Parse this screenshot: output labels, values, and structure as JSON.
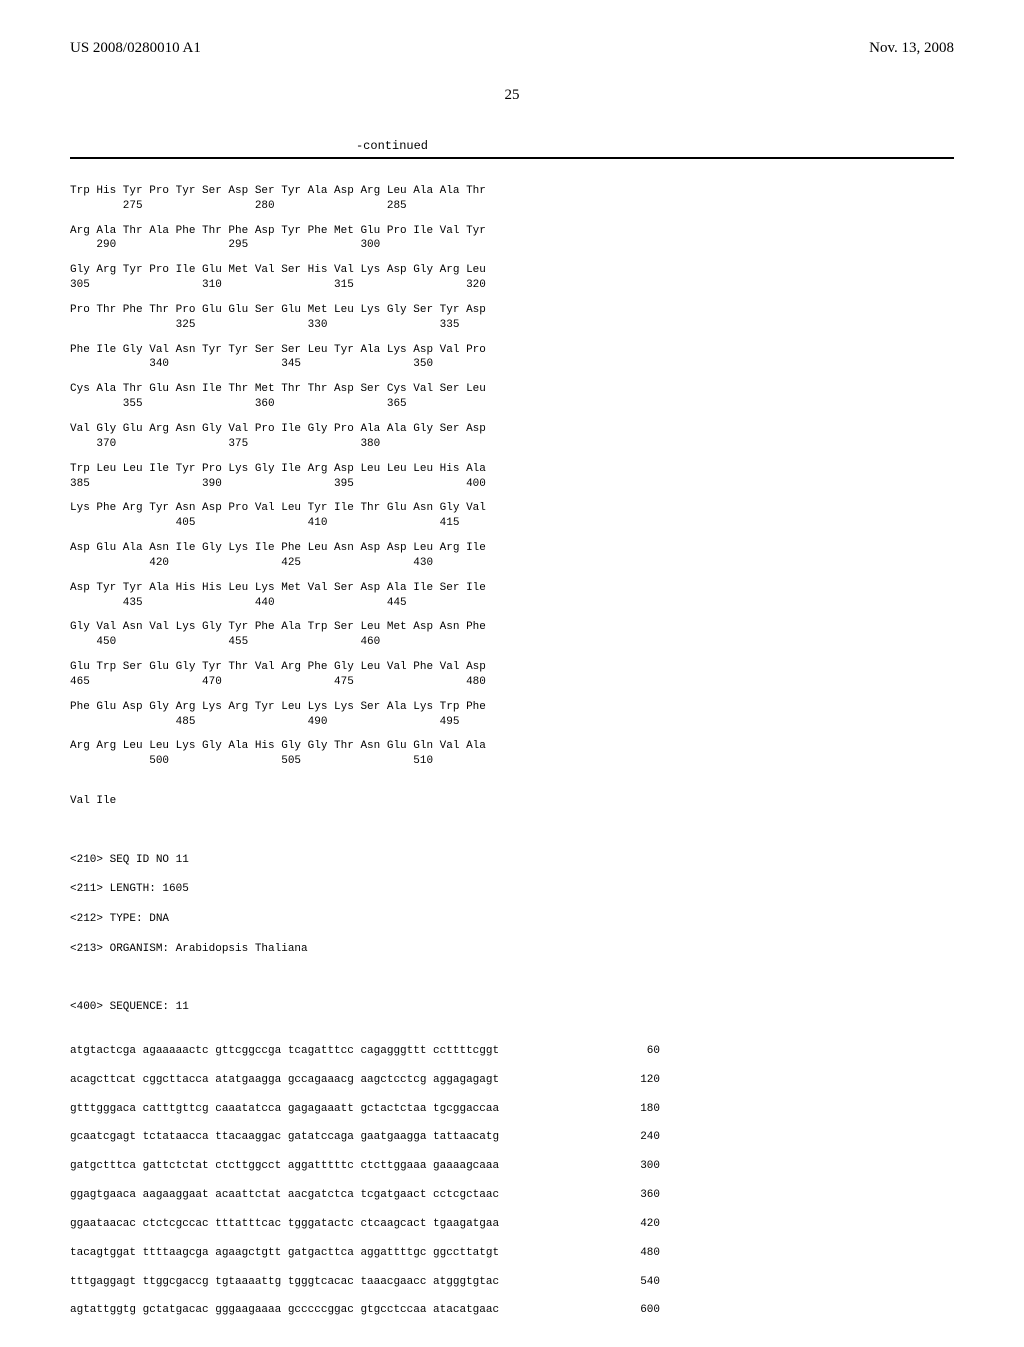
{
  "header": {
    "pub_number": "US 2008/0280010 A1",
    "pub_date": "Nov. 13, 2008",
    "page_number": "25"
  },
  "continued_label": "-continued",
  "protein_rows": [
    {
      "aa": "Trp His Tyr Pro Tyr Ser Asp Ser Tyr Ala Asp Arg Leu Ala Ala Thr",
      "pos": "        275                 280                 285"
    },
    {
      "aa": "Arg Ala Thr Ala Phe Thr Phe Asp Tyr Phe Met Glu Pro Ile Val Tyr",
      "pos": "    290                 295                 300"
    },
    {
      "aa": "Gly Arg Tyr Pro Ile Glu Met Val Ser His Val Lys Asp Gly Arg Leu",
      "pos": "305                 310                 315                 320"
    },
    {
      "aa": "Pro Thr Phe Thr Pro Glu Glu Ser Glu Met Leu Lys Gly Ser Tyr Asp",
      "pos": "                325                 330                 335"
    },
    {
      "aa": "Phe Ile Gly Val Asn Tyr Tyr Ser Ser Leu Tyr Ala Lys Asp Val Pro",
      "pos": "            340                 345                 350"
    },
    {
      "aa": "Cys Ala Thr Glu Asn Ile Thr Met Thr Thr Asp Ser Cys Val Ser Leu",
      "pos": "        355                 360                 365"
    },
    {
      "aa": "Val Gly Glu Arg Asn Gly Val Pro Ile Gly Pro Ala Ala Gly Ser Asp",
      "pos": "    370                 375                 380"
    },
    {
      "aa": "Trp Leu Leu Ile Tyr Pro Lys Gly Ile Arg Asp Leu Leu Leu His Ala",
      "pos": "385                 390                 395                 400"
    },
    {
      "aa": "Lys Phe Arg Tyr Asn Asp Pro Val Leu Tyr Ile Thr Glu Asn Gly Val",
      "pos": "                405                 410                 415"
    },
    {
      "aa": "Asp Glu Ala Asn Ile Gly Lys Ile Phe Leu Asn Asp Asp Leu Arg Ile",
      "pos": "            420                 425                 430"
    },
    {
      "aa": "Asp Tyr Tyr Ala His His Leu Lys Met Val Ser Asp Ala Ile Ser Ile",
      "pos": "        435                 440                 445"
    },
    {
      "aa": "Gly Val Asn Val Lys Gly Tyr Phe Ala Trp Ser Leu Met Asp Asn Phe",
      "pos": "    450                 455                 460"
    },
    {
      "aa": "Glu Trp Ser Glu Gly Tyr Thr Val Arg Phe Gly Leu Val Phe Val Asp",
      "pos": "465                 470                 475                 480"
    },
    {
      "aa": "Phe Glu Asp Gly Arg Lys Arg Tyr Leu Lys Lys Ser Ala Lys Trp Phe",
      "pos": "                485                 490                 495"
    },
    {
      "aa": "Arg Arg Leu Leu Lys Gly Ala His Gly Gly Thr Asn Glu Gln Val Ala",
      "pos": "            500                 505                 510"
    }
  ],
  "val_ile": "Val Ile",
  "meta": {
    "l1": "<210> SEQ ID NO 11",
    "l2": "<211> LENGTH: 1605",
    "l3": "<212> TYPE: DNA",
    "l4": "<213> ORGANISM: Arabidopsis Thaliana"
  },
  "seq_header": "<400> SEQUENCE: 11",
  "nuc_rows": [
    {
      "seq": "atgtactcga agaaaaactc gttcggccga tcagatttcc cagagggttt ccttttcggt",
      "pos": "60"
    },
    {
      "seq": "acagcttcat cggcttacca atatgaagga gccagaaacg aagctcctcg aggagagagt",
      "pos": "120"
    },
    {
      "seq": "gtttgggaca catttgttcg caaatatcca gagagaaatt gctactctaa tgcggaccaa",
      "pos": "180"
    },
    {
      "seq": "gcaatcgagt tctataacca ttacaaggac gatatccaga gaatgaagga tattaacatg",
      "pos": "240"
    },
    {
      "seq": "gatgctttca gattctctat ctcttggcct aggatttttc ctcttggaaa gaaaagcaaa",
      "pos": "300"
    },
    {
      "seq": "ggagtgaaca aagaaggaat acaattctat aacgatctca tcgatgaact cctcgctaac",
      "pos": "360"
    },
    {
      "seq": "ggaataacac ctctcgccac tttatttcac tgggatactc ctcaagcact tgaagatgaa",
      "pos": "420"
    },
    {
      "seq": "tacagtggat ttttaagcga agaagctgtt gatgacttca aggattttgc ggccttatgt",
      "pos": "480"
    },
    {
      "seq": "tttgaggagt ttggcgaccg tgtaaaattg tgggtcacac taaacgaacc atgggtgtac",
      "pos": "540"
    },
    {
      "seq": "agtattggtg gctatgacac gggaagaaaa gcccccggac gtgcctccaa atacatgaac",
      "pos": "600"
    }
  ]
}
